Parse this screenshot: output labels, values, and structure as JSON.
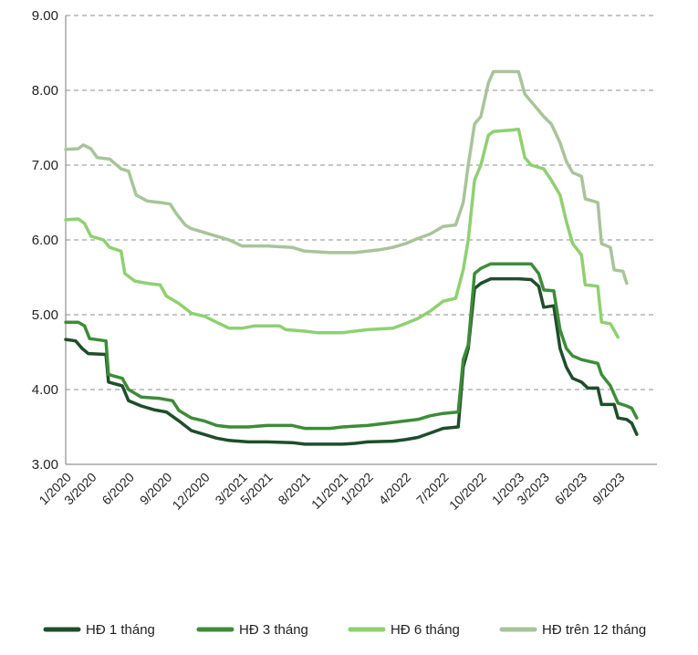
{
  "chart_data": {
    "type": "line",
    "title": "",
    "xlabel": "",
    "ylabel": "",
    "ylim": [
      3.0,
      9.0
    ],
    "yticks": [
      "3.00",
      "4.00",
      "5.00",
      "6.00",
      "7.00",
      "8.00",
      "9.00"
    ],
    "xlim": [
      0,
      47
    ],
    "xticks": [
      {
        "x": 0,
        "label": "1/2020"
      },
      {
        "x": 2,
        "label": "3/2020"
      },
      {
        "x": 5,
        "label": "6/2020"
      },
      {
        "x": 8,
        "label": "9/2020"
      },
      {
        "x": 11,
        "label": "12/2020"
      },
      {
        "x": 14,
        "label": "3/2021"
      },
      {
        "x": 16,
        "label": "5/2021"
      },
      {
        "x": 19,
        "label": "8/2021"
      },
      {
        "x": 22,
        "label": "11/2021"
      },
      {
        "x": 24,
        "label": "1/2022"
      },
      {
        "x": 27,
        "label": "4/2022"
      },
      {
        "x": 30,
        "label": "7/2022"
      },
      {
        "x": 33,
        "label": "10/2022"
      },
      {
        "x": 36,
        "label": "1/2023"
      },
      {
        "x": 38,
        "label": "3/2023"
      },
      {
        "x": 41,
        "label": "6/2023"
      },
      {
        "x": 44,
        "label": "9/2023"
      }
    ],
    "legend_position": "bottom",
    "grid": "horizontal-dashed",
    "series": [
      {
        "name": "HĐ 1 tháng",
        "color": "#1e4d2b",
        "points": [
          [
            0,
            4.67
          ],
          [
            0.8,
            4.65
          ],
          [
            1.3,
            4.55
          ],
          [
            1.8,
            4.48
          ],
          [
            3.2,
            4.47
          ],
          [
            3.4,
            4.1
          ],
          [
            4.5,
            4.05
          ],
          [
            5.0,
            3.85
          ],
          [
            6.0,
            3.78
          ],
          [
            7.0,
            3.73
          ],
          [
            8.0,
            3.7
          ],
          [
            9.0,
            3.58
          ],
          [
            10.0,
            3.45
          ],
          [
            11.0,
            3.4
          ],
          [
            12.0,
            3.35
          ],
          [
            13.0,
            3.32
          ],
          [
            14.5,
            3.3
          ],
          [
            16.0,
            3.3
          ],
          [
            18.0,
            3.29
          ],
          [
            19.0,
            3.27
          ],
          [
            22.0,
            3.27
          ],
          [
            23.0,
            3.28
          ],
          [
            24.0,
            3.3
          ],
          [
            26.0,
            3.31
          ],
          [
            27.0,
            3.33
          ],
          [
            28.0,
            3.36
          ],
          [
            29.0,
            3.42
          ],
          [
            30.0,
            3.48
          ],
          [
            31.2,
            3.5
          ],
          [
            31.6,
            4.3
          ],
          [
            32.0,
            4.55
          ],
          [
            32.5,
            5.35
          ],
          [
            33.0,
            5.42
          ],
          [
            33.8,
            5.48
          ],
          [
            36.0,
            5.48
          ],
          [
            37.0,
            5.47
          ],
          [
            37.6,
            5.38
          ],
          [
            38.0,
            5.1
          ],
          [
            38.8,
            5.12
          ],
          [
            39.3,
            4.55
          ],
          [
            39.8,
            4.3
          ],
          [
            40.3,
            4.15
          ],
          [
            41.0,
            4.1
          ],
          [
            41.5,
            4.02
          ],
          [
            42.3,
            4.02
          ],
          [
            42.6,
            3.8
          ],
          [
            43.6,
            3.8
          ],
          [
            43.9,
            3.62
          ],
          [
            44.6,
            3.6
          ],
          [
            45.0,
            3.55
          ],
          [
            45.4,
            3.4
          ]
        ]
      },
      {
        "name": "HĐ 3 tháng",
        "color": "#3d8c38",
        "points": [
          [
            0,
            4.9
          ],
          [
            1.0,
            4.9
          ],
          [
            1.5,
            4.85
          ],
          [
            1.9,
            4.68
          ],
          [
            3.2,
            4.65
          ],
          [
            3.4,
            4.2
          ],
          [
            4.5,
            4.15
          ],
          [
            5.0,
            4.0
          ],
          [
            6.0,
            3.9
          ],
          [
            7.5,
            3.88
          ],
          [
            8.5,
            3.85
          ],
          [
            9.0,
            3.72
          ],
          [
            10.0,
            3.62
          ],
          [
            11.0,
            3.58
          ],
          [
            12.0,
            3.52
          ],
          [
            13.0,
            3.5
          ],
          [
            14.5,
            3.5
          ],
          [
            16.0,
            3.52
          ],
          [
            18.0,
            3.52
          ],
          [
            19.0,
            3.48
          ],
          [
            21.0,
            3.48
          ],
          [
            22.0,
            3.5
          ],
          [
            24.0,
            3.52
          ],
          [
            26.0,
            3.56
          ],
          [
            27.0,
            3.58
          ],
          [
            28.0,
            3.6
          ],
          [
            29.0,
            3.65
          ],
          [
            30.0,
            3.68
          ],
          [
            31.2,
            3.7
          ],
          [
            31.6,
            4.4
          ],
          [
            32.0,
            4.6
          ],
          [
            32.5,
            5.55
          ],
          [
            33.0,
            5.62
          ],
          [
            33.8,
            5.68
          ],
          [
            36.0,
            5.68
          ],
          [
            37.0,
            5.68
          ],
          [
            37.6,
            5.55
          ],
          [
            38.0,
            5.33
          ],
          [
            38.8,
            5.32
          ],
          [
            39.3,
            4.8
          ],
          [
            39.8,
            4.55
          ],
          [
            40.3,
            4.45
          ],
          [
            41.0,
            4.4
          ],
          [
            41.5,
            4.38
          ],
          [
            42.3,
            4.35
          ],
          [
            42.6,
            4.2
          ],
          [
            43.3,
            4.05
          ],
          [
            43.9,
            3.82
          ],
          [
            44.6,
            3.78
          ],
          [
            45.0,
            3.75
          ],
          [
            45.4,
            3.62
          ]
        ]
      },
      {
        "name": "HĐ 6 tháng",
        "color": "#8fd070",
        "points": [
          [
            0,
            6.27
          ],
          [
            1.0,
            6.28
          ],
          [
            1.5,
            6.22
          ],
          [
            2.0,
            6.05
          ],
          [
            3.0,
            6.0
          ],
          [
            3.5,
            5.9
          ],
          [
            4.4,
            5.85
          ],
          [
            4.7,
            5.55
          ],
          [
            5.5,
            5.45
          ],
          [
            6.5,
            5.42
          ],
          [
            7.5,
            5.4
          ],
          [
            8.0,
            5.25
          ],
          [
            9.0,
            5.15
          ],
          [
            10.0,
            5.02
          ],
          [
            11.0,
            4.98
          ],
          [
            12.0,
            4.9
          ],
          [
            13.0,
            4.82
          ],
          [
            14.0,
            4.82
          ],
          [
            15.0,
            4.85
          ],
          [
            17.0,
            4.85
          ],
          [
            17.5,
            4.8
          ],
          [
            19.0,
            4.78
          ],
          [
            20.0,
            4.76
          ],
          [
            22.0,
            4.76
          ],
          [
            23.0,
            4.78
          ],
          [
            24.0,
            4.8
          ],
          [
            26.0,
            4.82
          ],
          [
            27.0,
            4.88
          ],
          [
            28.0,
            4.95
          ],
          [
            29.0,
            5.05
          ],
          [
            30.0,
            5.18
          ],
          [
            31.0,
            5.22
          ],
          [
            31.6,
            5.6
          ],
          [
            32.0,
            6.0
          ],
          [
            32.5,
            6.8
          ],
          [
            33.0,
            7.0
          ],
          [
            33.6,
            7.4
          ],
          [
            34.0,
            7.45
          ],
          [
            35.5,
            7.47
          ],
          [
            36.0,
            7.48
          ],
          [
            36.5,
            7.1
          ],
          [
            37.0,
            7.0
          ],
          [
            38.0,
            6.95
          ],
          [
            38.6,
            6.8
          ],
          [
            39.3,
            6.6
          ],
          [
            39.8,
            6.25
          ],
          [
            40.3,
            5.95
          ],
          [
            41.0,
            5.8
          ],
          [
            41.3,
            5.4
          ],
          [
            42.3,
            5.38
          ],
          [
            42.6,
            4.9
          ],
          [
            43.3,
            4.88
          ],
          [
            43.9,
            4.7
          ]
        ]
      },
      {
        "name": "HĐ trên 12 tháng",
        "color": "#a8c49a",
        "points": [
          [
            0,
            7.21
          ],
          [
            1.0,
            7.22
          ],
          [
            1.4,
            7.27
          ],
          [
            2.0,
            7.22
          ],
          [
            2.5,
            7.1
          ],
          [
            3.5,
            7.08
          ],
          [
            4.4,
            6.95
          ],
          [
            5.0,
            6.92
          ],
          [
            5.6,
            6.6
          ],
          [
            6.5,
            6.52
          ],
          [
            7.5,
            6.5
          ],
          [
            8.3,
            6.48
          ],
          [
            8.8,
            6.35
          ],
          [
            9.5,
            6.2
          ],
          [
            10.0,
            6.15
          ],
          [
            11.0,
            6.1
          ],
          [
            12.0,
            6.05
          ],
          [
            13.0,
            6.0
          ],
          [
            14.0,
            5.92
          ],
          [
            16.0,
            5.92
          ],
          [
            18.0,
            5.9
          ],
          [
            19.0,
            5.85
          ],
          [
            21.0,
            5.83
          ],
          [
            23.0,
            5.83
          ],
          [
            24.0,
            5.85
          ],
          [
            25.0,
            5.87
          ],
          [
            26.0,
            5.9
          ],
          [
            27.0,
            5.95
          ],
          [
            28.0,
            6.02
          ],
          [
            29.0,
            6.08
          ],
          [
            30.0,
            6.18
          ],
          [
            31.0,
            6.2
          ],
          [
            31.6,
            6.5
          ],
          [
            32.0,
            7.0
          ],
          [
            32.5,
            7.55
          ],
          [
            33.0,
            7.65
          ],
          [
            33.6,
            8.1
          ],
          [
            34.0,
            8.25
          ],
          [
            35.0,
            8.25
          ],
          [
            36.0,
            8.25
          ],
          [
            36.5,
            7.95
          ],
          [
            37.0,
            7.85
          ],
          [
            37.5,
            7.75
          ],
          [
            38.0,
            7.65
          ],
          [
            38.6,
            7.55
          ],
          [
            39.3,
            7.3
          ],
          [
            39.8,
            7.05
          ],
          [
            40.3,
            6.9
          ],
          [
            41.0,
            6.85
          ],
          [
            41.3,
            6.55
          ],
          [
            42.3,
            6.5
          ],
          [
            42.6,
            5.95
          ],
          [
            43.3,
            5.9
          ],
          [
            43.6,
            5.6
          ],
          [
            44.3,
            5.58
          ],
          [
            44.6,
            5.42
          ]
        ]
      }
    ]
  }
}
